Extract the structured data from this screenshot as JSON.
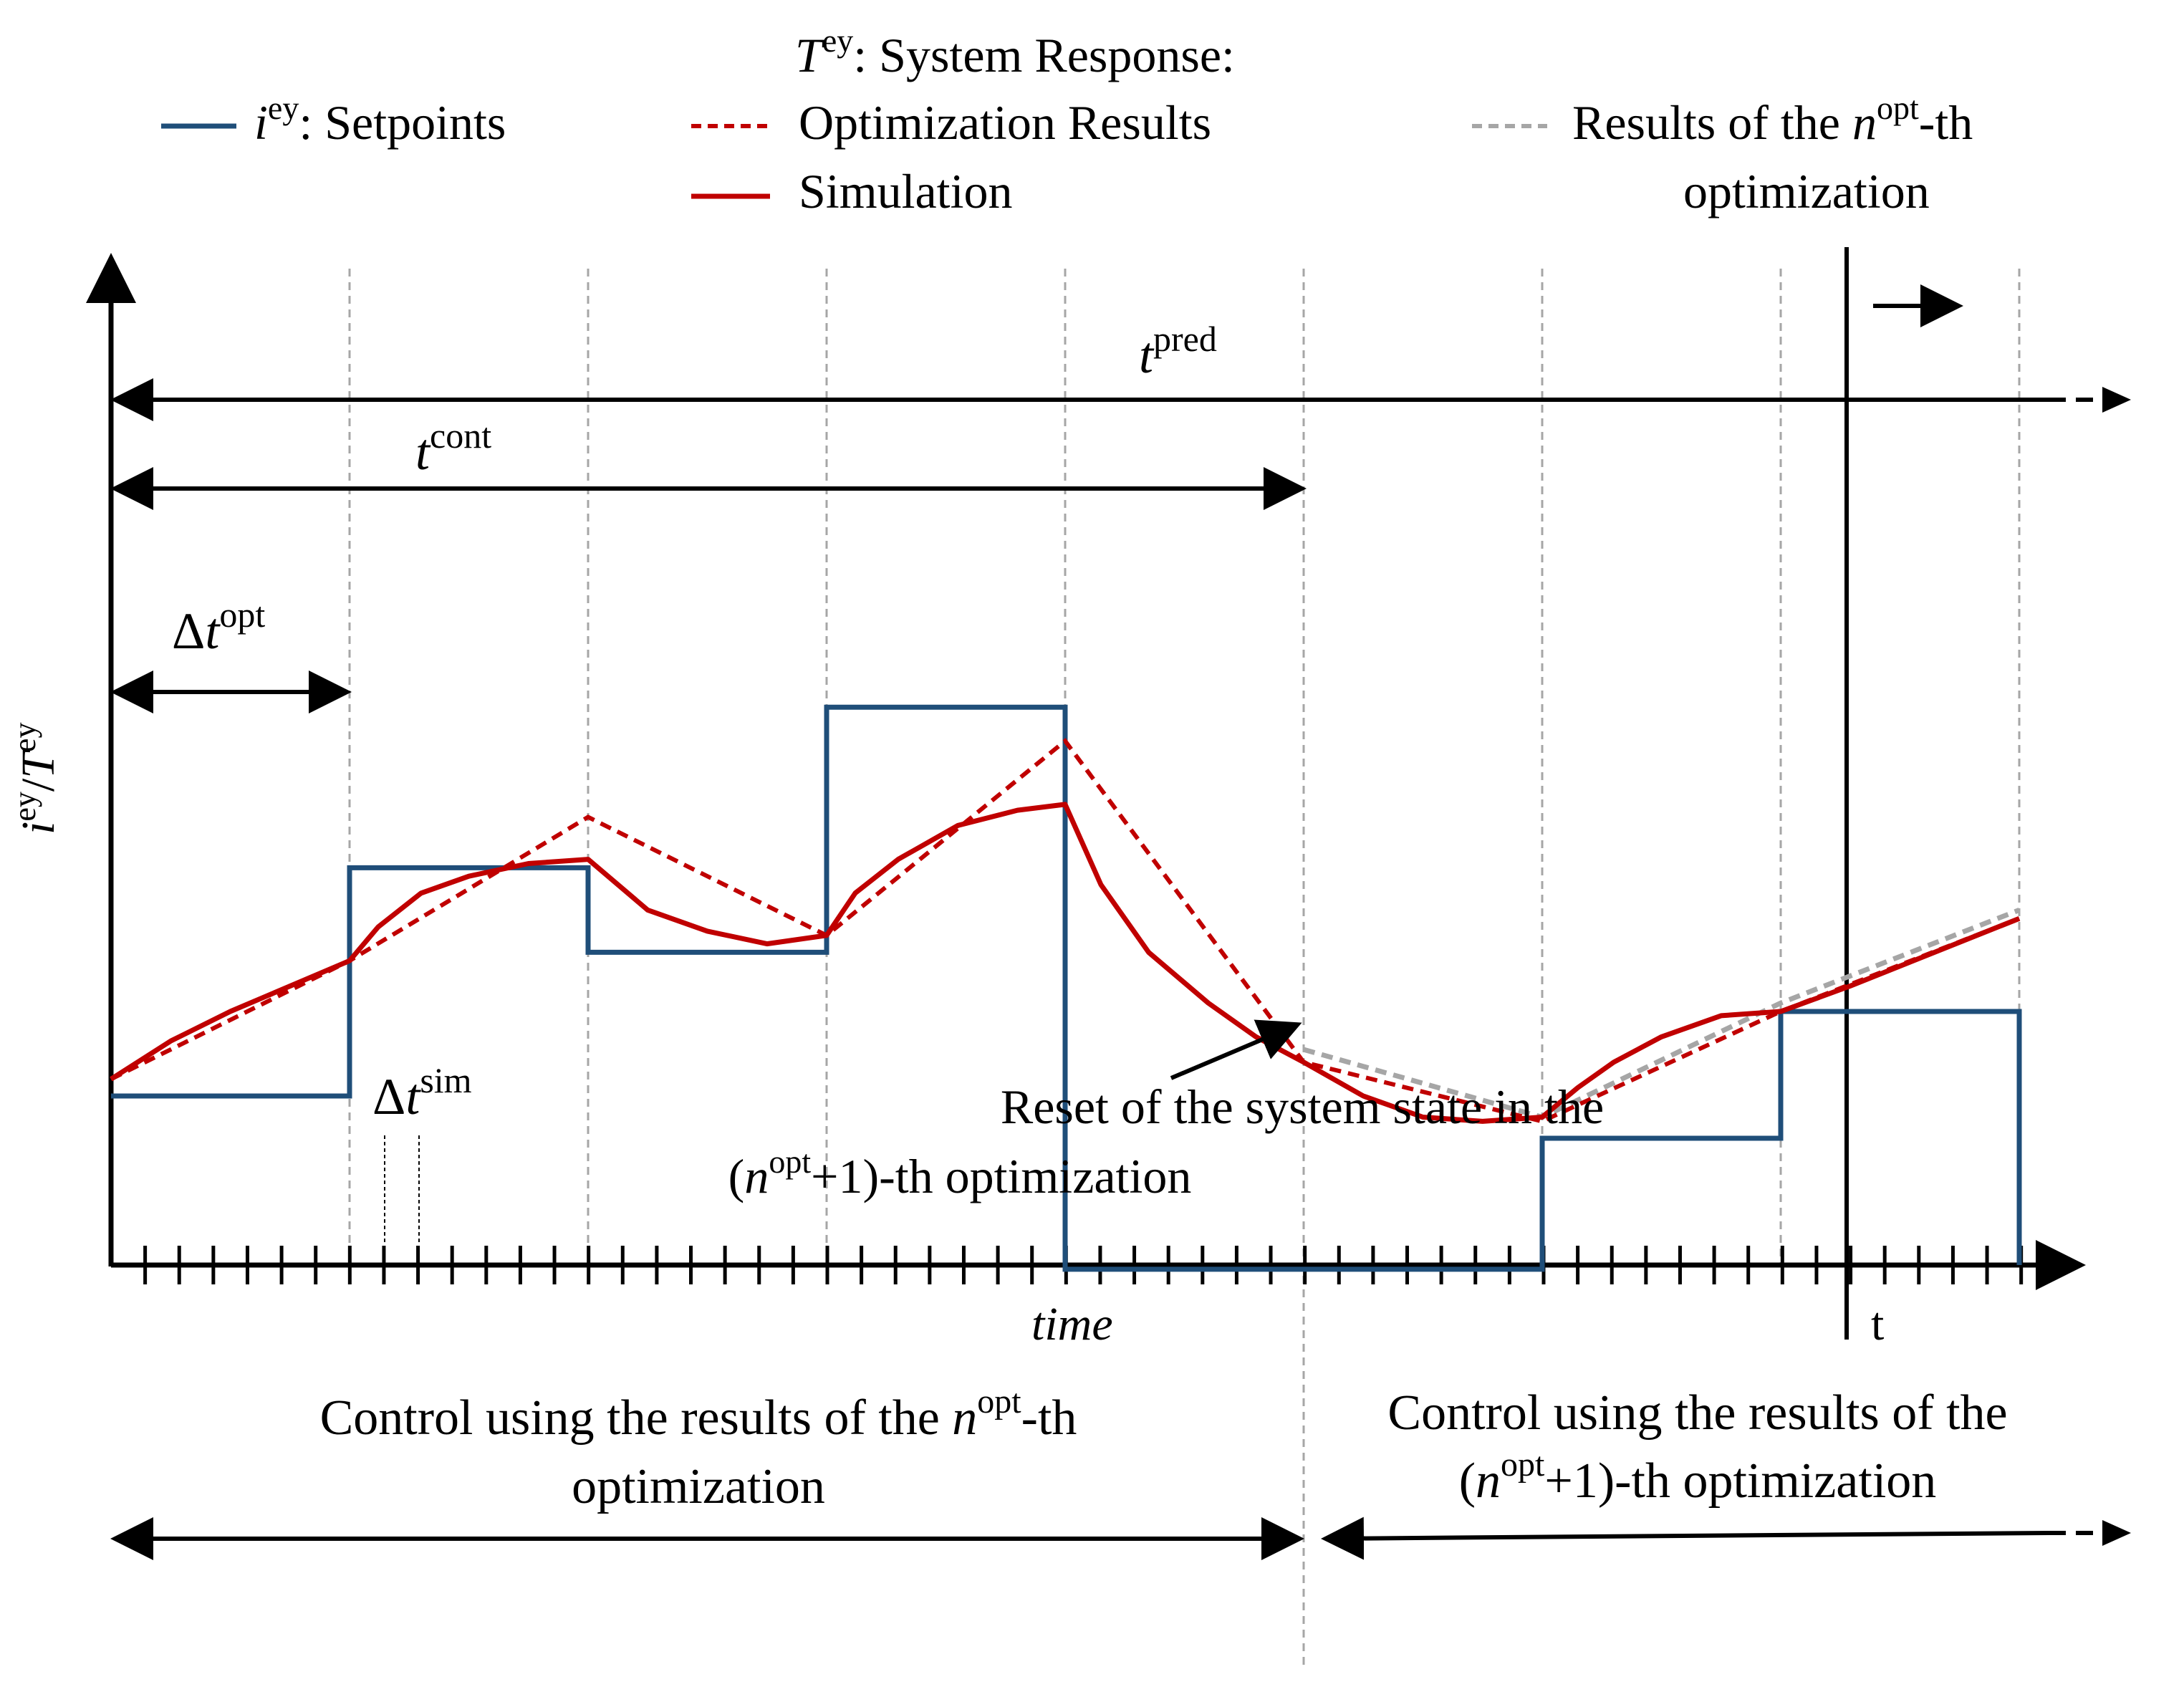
{
  "legend": {
    "setpoints_symbol": "i",
    "setpoints_sup": "ey",
    "setpoints_text": ":  Setpoints",
    "response_symbol": "T",
    "response_sup": "ey",
    "response_text": ": System Response:",
    "optimization_label": "Optimization Results",
    "simulation_label": "Simulation",
    "nth_prefix": "Results of the ",
    "nth_symbol": "n",
    "nth_sup": "opt",
    "nth_suffix": "-th",
    "nth_line2": "optimization"
  },
  "axes": {
    "y_symbol_i": "i",
    "y_sup_i": "ey",
    "y_slash": "/",
    "y_symbol_T": "T",
    "y_sup_T": "ey",
    "x_label": "time",
    "current_time": "t"
  },
  "intervals": {
    "pred_symbol": "t",
    "pred_sup": "pred",
    "cont_symbol": "t",
    "cont_sup": "cont",
    "opt_delta": "Δ",
    "opt_symbol": "t",
    "opt_sup": "opt",
    "sim_delta": "Δ",
    "sim_symbol": "t",
    "sim_sup": "sim"
  },
  "annotation": {
    "line1": "Reset of the system state in the",
    "line2_open": "(",
    "line2_symbol": "n",
    "line2_sup": "opt",
    "line2_rest": "+1)-th optimization"
  },
  "bottom": {
    "left_line1_prefix": "Control using the results of the ",
    "left_symbol": "n",
    "left_sup": "opt",
    "left_suffix": "-th",
    "left_line2": "optimization",
    "right_line1": "Control using the results of the",
    "right_line2_open": "(",
    "right_symbol": "n",
    "right_sup": "opt",
    "right_rest": "+1)-th optimization"
  },
  "colors": {
    "setpoint": "#1f4e79",
    "response": "#c00000",
    "nth_result": "#a6a6a6",
    "axis": "#000000",
    "grid": "#a6a6a6"
  },
  "diagram": {
    "x_range": [
      0,
      8
    ],
    "y_range": [
      0,
      10
    ],
    "optimization_steps": [
      0,
      1,
      2,
      3,
      4,
      5,
      6,
      7,
      8
    ],
    "simulation_step": 0.143,
    "control_horizon_end": 5,
    "current_time_t": 7.29,
    "setpoints": [
      {
        "from": 0,
        "to": 1,
        "value": 2.0
      },
      {
        "from": 1,
        "to": 2,
        "value": 4.7
      },
      {
        "from": 2,
        "to": 3,
        "value": 3.7
      },
      {
        "from": 3,
        "to": 4,
        "value": 6.6
      },
      {
        "from": 4,
        "to": 6,
        "value": -0.05
      },
      {
        "from": 6,
        "to": 7,
        "value": 1.5
      },
      {
        "from": 7,
        "to": 8,
        "value": 3.0
      }
    ],
    "optimization_results": [
      [
        0,
        2.2
      ],
      [
        1,
        3.6
      ],
      [
        2,
        5.3
      ],
      [
        3,
        3.9
      ],
      [
        4,
        6.2
      ],
      [
        5,
        2.4
      ],
      [
        6,
        1.7
      ],
      [
        7,
        3.0
      ],
      [
        8,
        4.1
      ]
    ],
    "simulation": [
      [
        0,
        2.2
      ],
      [
        0.25,
        2.65
      ],
      [
        0.5,
        3.0
      ],
      [
        0.75,
        3.3
      ],
      [
        1,
        3.6
      ],
      [
        1.12,
        4.0
      ],
      [
        1.3,
        4.4
      ],
      [
        1.5,
        4.6
      ],
      [
        1.75,
        4.75
      ],
      [
        2,
        4.8
      ],
      [
        2.25,
        4.2
      ],
      [
        2.5,
        3.95
      ],
      [
        2.75,
        3.8
      ],
      [
        3,
        3.9
      ],
      [
        3.12,
        4.4
      ],
      [
        3.3,
        4.8
      ],
      [
        3.55,
        5.2
      ],
      [
        3.8,
        5.38
      ],
      [
        4,
        5.45
      ],
      [
        4.15,
        4.5
      ],
      [
        4.35,
        3.7
      ],
      [
        4.6,
        3.1
      ],
      [
        4.8,
        2.7
      ],
      [
        5,
        2.4
      ],
      [
        5.25,
        2.0
      ],
      [
        5.5,
        1.75
      ],
      [
        5.75,
        1.7
      ],
      [
        6,
        1.75
      ],
      [
        6.15,
        2.1
      ],
      [
        6.3,
        2.4
      ],
      [
        6.5,
        2.7
      ],
      [
        6.75,
        2.95
      ],
      [
        7,
        3.0
      ],
      [
        7.29,
        3.3
      ],
      [
        8,
        4.1
      ]
    ],
    "nth_results": [
      [
        5,
        2.55
      ],
      [
        6,
        1.75
      ],
      [
        7,
        3.1
      ],
      [
        8,
        4.2
      ]
    ]
  }
}
